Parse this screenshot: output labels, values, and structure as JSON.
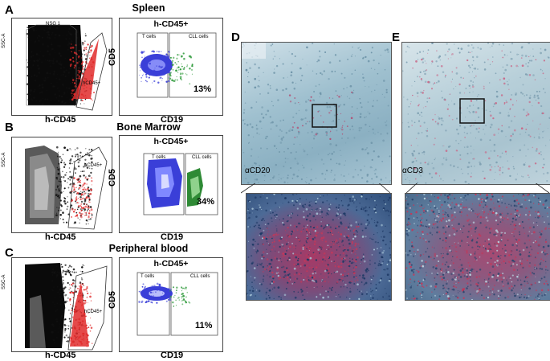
{
  "figure": {
    "panels": {
      "A": {
        "letter": "A",
        "title": "Spleen",
        "gate_label": "NSG 1",
        "gate_name": "hCD45+",
        "xlabel": "h-CD45",
        "ylabel": "SSC-A",
        "quad_title": "h-CD45+",
        "tcell_label": "T cells",
        "cll_label": "CLL cells",
        "pct": "13%",
        "quad_x": "CD19",
        "quad_y": "CD5"
      },
      "B": {
        "letter": "B",
        "title": "Bone Marrow",
        "gate_name": "hCD45+",
        "xlabel": "h-CD45",
        "ylabel": "SSC-A",
        "quad_title": "h-CD45+",
        "tcell_label": "T cells",
        "cll_label": "CLL cells",
        "pct": "34%",
        "quad_x": "CD19",
        "quad_y": "CD5"
      },
      "C": {
        "letter": "C",
        "title": "Peripheral blood",
        "gate_name": "hCD45+",
        "xlabel": "h-CD45",
        "ylabel": "SSC-A",
        "quad_title": "h-CD45+",
        "tcell_label": "T cells",
        "cll_label": "CLL cells",
        "pct": "11%",
        "quad_x": "CD19",
        "quad_y": "CD5"
      },
      "D": {
        "letter": "D",
        "stain": "αCD20"
      },
      "E": {
        "letter": "E",
        "stain": "αCD3"
      }
    },
    "colors": {
      "tcells": "#3a3fd8",
      "cll": "#2e9a3a",
      "gated": "#e22a2a",
      "tissue": "#8fb3c7",
      "stain": "#b23a5a"
    }
  }
}
